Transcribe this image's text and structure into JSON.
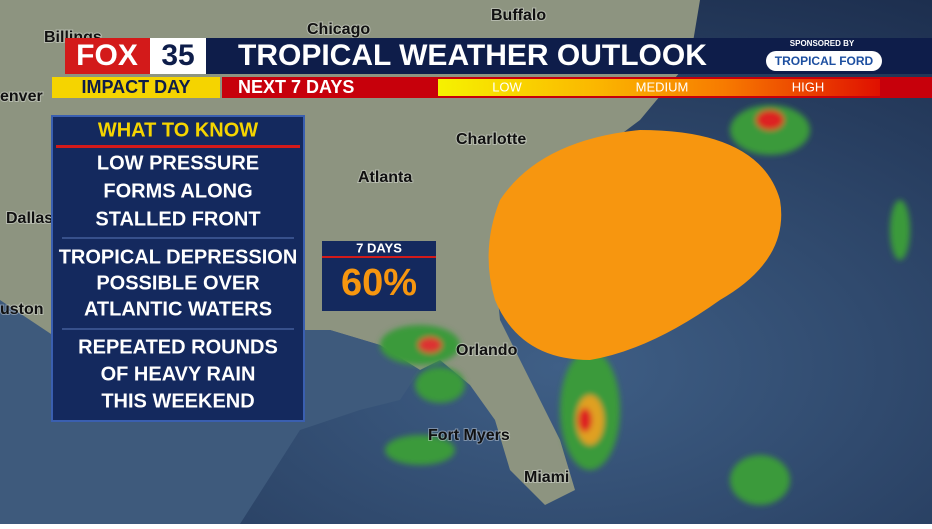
{
  "header": {
    "logo": "FOX",
    "logo_number": "35",
    "title": "TROPICAL WEATHER OUTLOOK",
    "impact": "IMPACT DAY",
    "subtitle": "NEXT 7 DAYS",
    "sponsor_label": "SPONSORED BY",
    "sponsor": "TROPICAL FORD"
  },
  "legend": [
    "LOW",
    "MEDIUM",
    "HIGH"
  ],
  "panel": {
    "title": "WHAT TO KNOW",
    "items": [
      [
        "LOW PRESSURE",
        "FORMS ALONG",
        "STALLED FRONT"
      ],
      [
        "TROPICAL DEPRESSION",
        "POSSIBLE OVER",
        "ATLANTIC WATERS"
      ],
      [
        "REPEATED ROUNDS",
        "OF HEAVY RAIN",
        "THIS WEEKEND"
      ]
    ]
  },
  "outlook": {
    "period": "7 DAYS",
    "chance": "60%"
  },
  "cities": [
    "Billings",
    "Chicago",
    "Buffalo",
    "enver",
    "Charlotte",
    "Atlanta",
    "Dallas",
    "uston",
    "Orlando",
    "Fort Myers",
    "Miami"
  ]
}
